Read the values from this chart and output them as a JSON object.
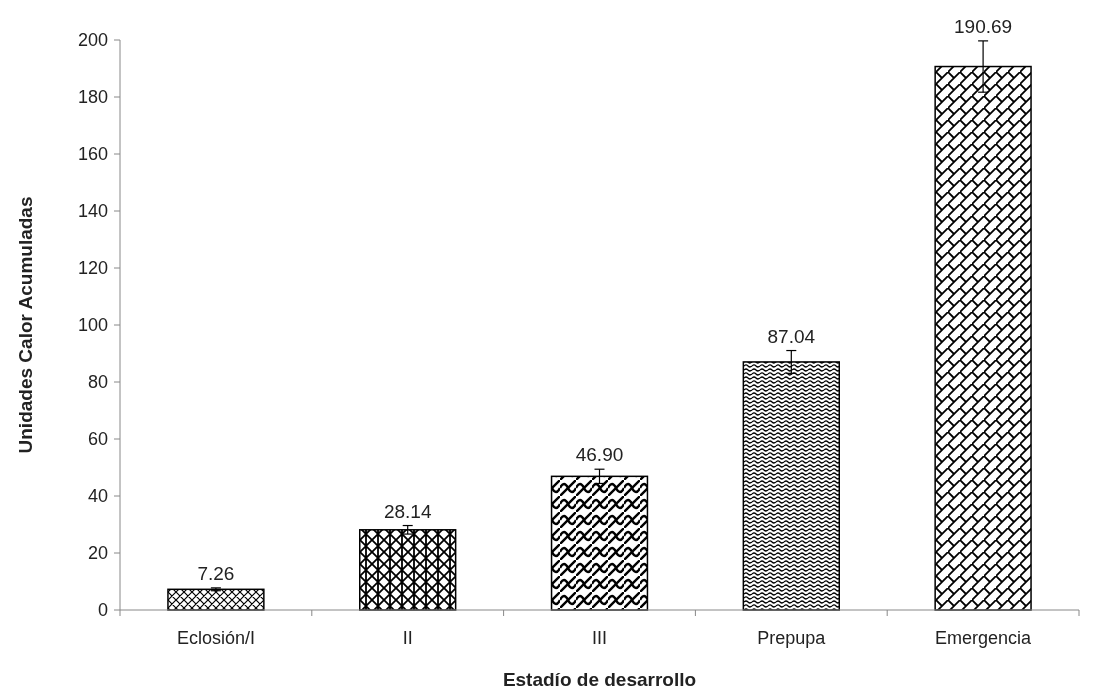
{
  "chart_data": {
    "type": "bar",
    "xlabel": "Estadío de desarrollo",
    "ylabel": "Unidades Calor Acumuladas",
    "categories": [
      "Eclosión/I",
      "II",
      "III",
      "Prepupa",
      "Emergencia"
    ],
    "values": [
      7.26,
      28.14,
      46.9,
      87.04,
      190.69
    ],
    "value_labels": [
      "7.26",
      "28.14",
      "46.90",
      "87.04",
      "190.69"
    ],
    "errors": [
      0.5,
      1.5,
      2.5,
      4,
      9
    ],
    "colors": [
      "#000000",
      "#000000",
      "#000000",
      "#000000",
      "#000000"
    ],
    "ylim": [
      0,
      200
    ],
    "yticks": [
      0,
      20,
      40,
      60,
      80,
      100,
      120,
      140,
      160,
      180,
      200
    ],
    "grid": false
  }
}
